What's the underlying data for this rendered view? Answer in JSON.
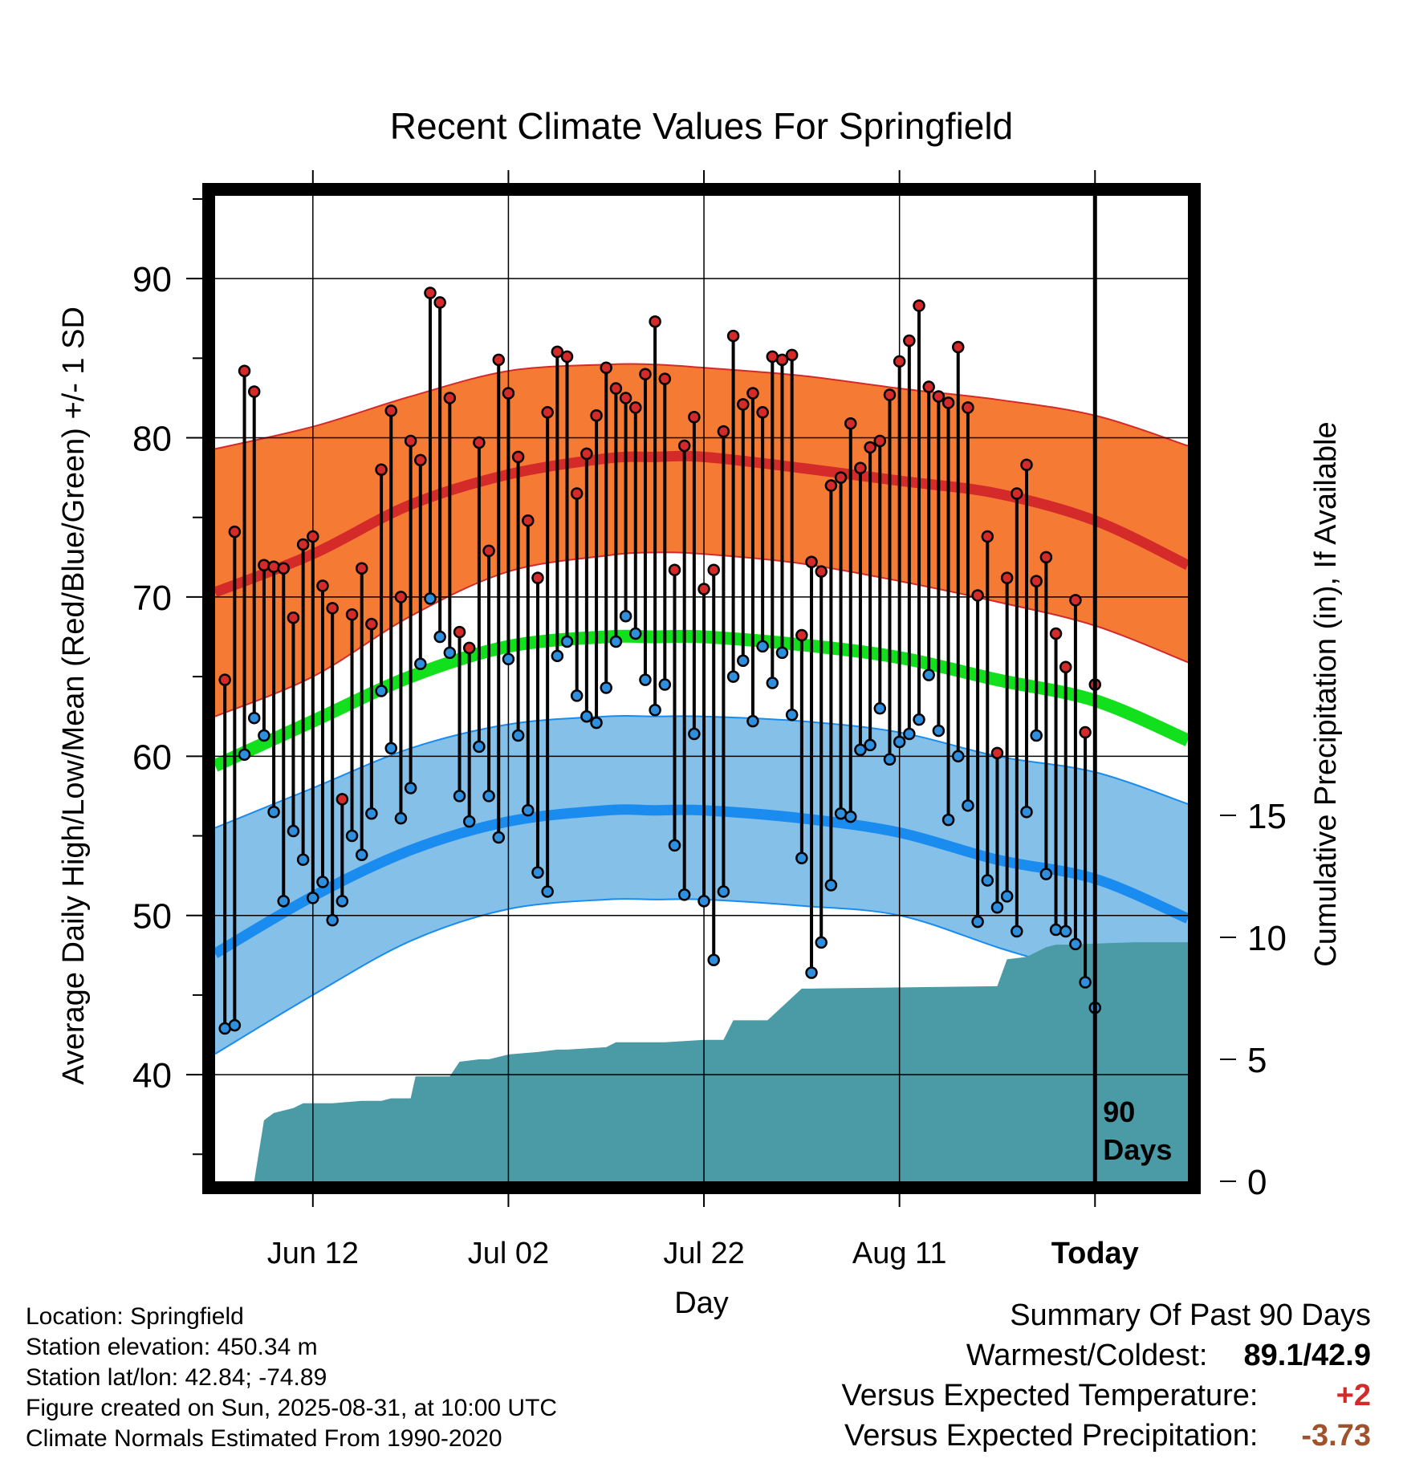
{
  "chart_data": {
    "type": "line",
    "title": "Recent Climate Values For Springfield",
    "xlabel": "Day",
    "ylabel": "Average Daily High/Low/Mean (Red/Blue/Green) +/- 1 SD",
    "y2label": "Cumulative Precipitation (in), If Available",
    "x_tick_labels": [
      "Jun 12",
      "Jul 02",
      "Jul 22",
      "Aug 11",
      "Today"
    ],
    "x_tick_days": [
      10,
      30,
      50,
      70,
      90
    ],
    "y_ticks": [
      40,
      50,
      60,
      70,
      80,
      90
    ],
    "y2_ticks": [
      0,
      5,
      10,
      15
    ],
    "ylim": [
      33.3,
      95.2
    ],
    "y2lim": [
      0,
      40.4
    ],
    "xlim": [
      0,
      99.5
    ],
    "today_marker_label": [
      "90",
      "Days"
    ],
    "normals": {
      "x": [
        0,
        10,
        20,
        30,
        40,
        45,
        50,
        60,
        70,
        80,
        90,
        99.5
      ],
      "high_mean": [
        70.3,
        72.7,
        75.8,
        77.7,
        78.7,
        78.8,
        78.8,
        78.1,
        77.3,
        76.5,
        74.8,
        72.0
      ],
      "high_upper": [
        79.3,
        80.7,
        82.6,
        84.2,
        84.6,
        84.6,
        84.4,
        83.9,
        83.1,
        82.4,
        81.4,
        79.5
      ],
      "high_lower": [
        62.5,
        65.0,
        68.8,
        71.6,
        72.6,
        72.8,
        72.7,
        72.1,
        71.0,
        69.7,
        68.2,
        65.9
      ],
      "mean_mean": [
        59.4,
        62.2,
        65.0,
        66.9,
        67.5,
        67.5,
        67.5,
        67.0,
        66.2,
        64.8,
        63.5,
        61.0
      ],
      "low_mean": [
        47.6,
        51.2,
        54.1,
        55.9,
        56.6,
        56.6,
        56.6,
        56.1,
        55.2,
        53.5,
        52.3,
        49.8
      ],
      "low_upper": [
        55.5,
        58.0,
        60.5,
        62.0,
        62.5,
        62.5,
        62.5,
        62.2,
        61.5,
        60.0,
        59.0,
        57.0
      ],
      "low_lower": [
        41.3,
        45.0,
        48.4,
        50.4,
        51.0,
        51.0,
        51.0,
        50.6,
        50.0,
        48.0,
        46.0,
        42.8
      ]
    },
    "series": [
      {
        "name": "High",
        "color": "#d42a2a",
        "values": [
          64.8,
          74.1,
          84.2,
          82.9,
          72.0,
          71.9,
          71.8,
          68.7,
          73.3,
          73.8,
          70.7,
          69.3,
          57.3,
          68.9,
          71.8,
          68.3,
          78.0,
          81.7,
          70.0,
          79.8,
          78.6,
          89.1,
          88.5,
          82.5,
          67.8,
          66.8,
          79.7,
          72.9,
          84.9,
          82.8,
          78.8,
          74.8,
          71.2,
          81.6,
          85.4,
          85.1,
          76.5,
          79.0,
          81.4,
          84.4,
          83.1,
          82.5,
          81.9,
          84.0,
          87.3,
          83.7,
          71.7,
          79.5,
          81.3,
          70.5,
          71.7,
          80.4,
          86.4,
          82.1,
          82.8,
          81.6,
          85.1,
          84.9,
          85.2,
          67.6,
          72.2,
          71.6,
          77.0,
          77.5,
          80.9,
          78.1,
          79.4,
          79.8,
          82.7,
          84.8,
          86.1,
          88.3,
          83.2,
          82.6,
          82.2,
          85.7,
          81.9,
          70.1,
          73.8,
          60.2,
          71.2,
          76.5,
          78.3,
          71.0,
          72.5,
          67.7,
          65.6,
          69.8,
          61.5,
          64.5
        ]
      },
      {
        "name": "Low",
        "color": "#2e8fdf",
        "values": [
          42.9,
          43.1,
          60.1,
          62.4,
          61.3,
          56.5,
          50.9,
          55.3,
          53.5,
          51.1,
          52.1,
          49.7,
          50.9,
          55.0,
          53.8,
          56.4,
          64.1,
          60.5,
          56.1,
          58.0,
          65.8,
          69.9,
          67.5,
          66.5,
          57.5,
          55.9,
          60.6,
          57.5,
          54.9,
          66.1,
          61.3,
          56.6,
          52.7,
          51.5,
          66.3,
          67.2,
          63.8,
          62.5,
          62.1,
          64.3,
          67.2,
          68.8,
          67.7,
          64.8,
          62.9,
          64.5,
          54.4,
          51.3,
          61.4,
          50.9,
          47.2,
          51.5,
          65.0,
          66.0,
          62.2,
          66.9,
          64.6,
          66.5,
          62.6,
          53.6,
          46.4,
          48.3,
          51.9,
          56.4,
          56.2,
          60.4,
          60.7,
          63.0,
          59.8,
          60.9,
          61.4,
          62.3,
          65.1,
          61.6,
          56.0,
          60.0,
          56.9,
          49.6,
          52.2,
          50.5,
          51.2,
          49.0,
          56.5,
          61.3,
          52.6,
          49.1,
          49.0,
          48.2,
          45.8,
          44.2
        ]
      },
      {
        "name": "Cumulative Precipitation",
        "color": "#4a9ba6",
        "x": [
          0,
          3,
          4,
          5,
          6,
          8,
          9,
          10,
          11,
          12,
          15,
          17,
          18,
          19,
          20,
          20.5,
          24,
          25,
          27,
          28,
          29,
          30,
          33,
          35,
          36,
          40,
          41,
          46,
          50,
          52,
          53,
          56,
          56.5,
          60,
          61,
          80,
          81,
          83,
          85,
          86,
          87,
          94,
          99.5
        ],
        "values": [
          0,
          0,
          0,
          2.5,
          2.8,
          3.0,
          3.2,
          3.2,
          3.2,
          3.2,
          3.3,
          3.3,
          3.4,
          3.4,
          3.4,
          4.3,
          4.3,
          4.9,
          5.0,
          5.0,
          5.1,
          5.2,
          5.3,
          5.4,
          5.4,
          5.5,
          5.7,
          5.7,
          5.8,
          5.8,
          6.6,
          6.6,
          6.6,
          7.9,
          7.9,
          8.0,
          9.1,
          9.2,
          9.6,
          9.7,
          9.7,
          9.8,
          9.8
        ]
      }
    ]
  },
  "footer": {
    "location": "Location: Springfield",
    "elevation": "Station elevation: 450.34 m",
    "latlon": "Station lat/lon: 42.84; -74.89",
    "created": "Figure created on Sun, 2025-08-31, at 10:00 UTC",
    "normals": "Climate Normals Estimated From 1990-2020"
  },
  "summary": {
    "heading": "Summary Of Past 90 Days",
    "warm_cold_label": "Warmest/Coldest:",
    "warm_cold_value": "89.1/42.9",
    "temp_label": "Versus Expected Temperature:",
    "temp_value": "+2",
    "temp_color": "#d42a2a",
    "precip_label": "Versus Expected Precipitation:",
    "precip_value": "-3.73",
    "precip_color": "#a0522d"
  },
  "colors": {
    "high_band": "#f57b35",
    "high_line": "#d42a2a",
    "mean_line": "#12e01c",
    "low_band": "#84c0e8",
    "low_line": "#1a8cf0",
    "precip": "#4a9ba6"
  }
}
